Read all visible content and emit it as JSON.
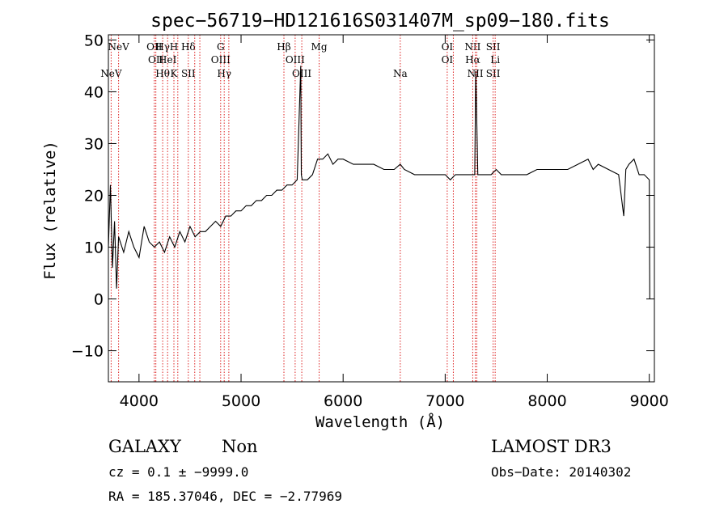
{
  "chart_data": {
    "type": "line",
    "title": "spec−56719−HD121616S031407M_sp09−180.fits",
    "xlabel": "Wavelength (Å)",
    "ylabel": "Flux (relative)",
    "xlim": [
      3700,
      9050
    ],
    "ylim": [
      -16,
      51
    ],
    "xticks": [
      4000,
      5000,
      6000,
      7000,
      8000,
      9000
    ],
    "yticks": [
      -10,
      0,
      10,
      20,
      30,
      40,
      50
    ],
    "ytick_labels": [
      "−10",
      "0",
      "10",
      "20",
      "30",
      "40",
      "50"
    ],
    "grid": false,
    "series": [
      {
        "name": "spectrum",
        "x": [
          3700,
          3720,
          3740,
          3760,
          3780,
          3800,
          3850,
          3900,
          3950,
          4000,
          4050,
          4100,
          4150,
          4200,
          4250,
          4300,
          4350,
          4400,
          4450,
          4500,
          4550,
          4600,
          4650,
          4700,
          4750,
          4800,
          4850,
          4900,
          4950,
          5000,
          5050,
          5100,
          5150,
          5200,
          5250,
          5300,
          5350,
          5400,
          5450,
          5500,
          5550,
          5585,
          5590,
          5600,
          5650,
          5700,
          5750,
          5800,
          5850,
          5900,
          5950,
          6000,
          6100,
          6200,
          6300,
          6400,
          6500,
          6560,
          6600,
          6700,
          6800,
          6900,
          7000,
          7050,
          7100,
          7150,
          7200,
          7250,
          7290,
          7300,
          7320,
          7350,
          7400,
          7450,
          7500,
          7550,
          7600,
          7700,
          7800,
          7900,
          8000,
          8100,
          8200,
          8300,
          8400,
          8450,
          8500,
          8600,
          8700,
          8750,
          8770,
          8800,
          8850,
          8900,
          8950,
          9000,
          9005
        ],
        "values": [
          10,
          22,
          6,
          15,
          2,
          12,
          9,
          13,
          10,
          8,
          14,
          11,
          10,
          11,
          9,
          12,
          10,
          13,
          11,
          14,
          12,
          13,
          13,
          14,
          15,
          14,
          16,
          16,
          17,
          17,
          18,
          18,
          19,
          19,
          20,
          20,
          21,
          21,
          22,
          22,
          23,
          45,
          24,
          23,
          23,
          24,
          27,
          27,
          28,
          26,
          27,
          27,
          26,
          26,
          26,
          25,
          25,
          26,
          25,
          24,
          24,
          24,
          24,
          23,
          24,
          24,
          24,
          24,
          24,
          44,
          24,
          24,
          24,
          24,
          25,
          24,
          24,
          24,
          24,
          25,
          25,
          25,
          25,
          26,
          27,
          25,
          26,
          25,
          24,
          16,
          25,
          26,
          27,
          24,
          24,
          23,
          0
        ]
      }
    ],
    "lines": [
      {
        "x": 3727,
        "top": "",
        "bottom": "NeV"
      },
      {
        "x": 3800,
        "top": "NeV",
        "bottom": ""
      },
      {
        "x": 4150,
        "top": "OII",
        "bottom": ""
      },
      {
        "x": 4165,
        "top": "",
        "bottom": "OII"
      },
      {
        "x": 4232,
        "top": "Hγ",
        "bottom": "Hθ"
      },
      {
        "x": 4280,
        "top": "",
        "bottom": "HeI"
      },
      {
        "x": 4342,
        "top": "H",
        "bottom": "K"
      },
      {
        "x": 4380,
        "top": "",
        "bottom": ""
      },
      {
        "x": 4483,
        "top": "Hδ",
        "bottom": "SII"
      },
      {
        "x": 4546,
        "top": "",
        "bottom": ""
      },
      {
        "x": 4596,
        "top": "",
        "bottom": ""
      },
      {
        "x": 4800,
        "top": "G",
        "bottom": "OIII"
      },
      {
        "x": 4835,
        "top": "",
        "bottom": "Hγ"
      },
      {
        "x": 4880,
        "top": "",
        "bottom": ""
      },
      {
        "x": 5420,
        "top": "Hβ",
        "bottom": ""
      },
      {
        "x": 5530,
        "top": "",
        "bottom": "OIII"
      },
      {
        "x": 5595,
        "top": "",
        "bottom": "OIII"
      },
      {
        "x": 5765,
        "top": "Mg",
        "bottom": ""
      },
      {
        "x": 6560,
        "top": "",
        "bottom": "Na"
      },
      {
        "x": 7020,
        "top": "OI",
        "bottom": "OI"
      },
      {
        "x": 7080,
        "top": "",
        "bottom": ""
      },
      {
        "x": 7270,
        "top": "NII",
        "bottom": "Hα"
      },
      {
        "x": 7295,
        "top": "",
        "bottom": "NII"
      },
      {
        "x": 7310,
        "top": "",
        "bottom": ""
      },
      {
        "x": 7470,
        "top": "SII",
        "bottom": "SII"
      },
      {
        "x": 7490,
        "top": "",
        "bottom": "Li"
      }
    ]
  },
  "info": {
    "class_label": "GALAXY",
    "subclass_label": "Non",
    "survey": "LAMOST DR3",
    "cz_text": "cz = 0.1 ± −9999.0",
    "obs_date": "Obs−Date: 20140302",
    "coords": "RA = 185.37046, DEC =  −2.77969"
  }
}
